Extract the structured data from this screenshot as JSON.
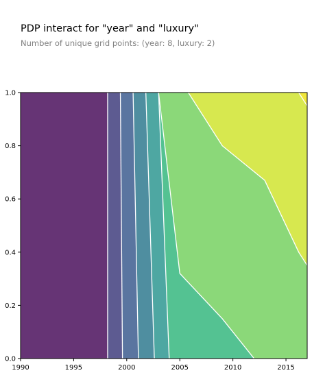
{
  "chart_data": {
    "type": "heatmap",
    "title": "PDP interact for \"year\" and \"luxury\"",
    "subtitle": "Number of unique grid points: (year: 8, luxury: 2)",
    "xlabel": "",
    "ylabel": "",
    "xlim": [
      1990,
      2017
    ],
    "ylim": [
      0.0,
      1.0
    ],
    "x_ticks": [
      1990,
      1995,
      2000,
      2005,
      2010,
      2015
    ],
    "x_tick_labels": [
      "1990",
      "1995",
      "2000",
      "2005",
      "2010",
      "2015"
    ],
    "y_ticks": [
      0.0,
      0.2,
      0.4,
      0.6,
      0.8,
      1.0
    ],
    "y_tick_labels": [
      "0.0",
      "0.2",
      "0.4",
      "0.6",
      "0.8",
      "1.0"
    ],
    "grid": false,
    "contour_line_color": "#ffffff",
    "contour_levels": [
      {
        "color": "#663475",
        "polygon": [
          [
            1990,
            0
          ],
          [
            1998.2,
            0
          ],
          [
            1998.2,
            1
          ],
          [
            1990,
            1
          ]
        ]
      },
      {
        "color": "#5d5b91",
        "polygon": [
          [
            1998.2,
            0
          ],
          [
            1999.6,
            0
          ],
          [
            1999.4,
            1
          ],
          [
            1998.2,
            1
          ]
        ]
      },
      {
        "color": "#5a75a0",
        "polygon": [
          [
            1999.6,
            0
          ],
          [
            2001.1,
            0
          ],
          [
            2000.6,
            1
          ],
          [
            1999.4,
            1
          ]
        ]
      },
      {
        "color": "#4f8ea0",
        "polygon": [
          [
            2001.1,
            0
          ],
          [
            2002.6,
            0
          ],
          [
            2001.8,
            1
          ],
          [
            2000.6,
            1
          ]
        ]
      },
      {
        "color": "#4ea7a2",
        "polygon": [
          [
            2002.6,
            0
          ],
          [
            2004.0,
            0
          ],
          [
            2003.0,
            1
          ],
          [
            2001.8,
            1
          ]
        ]
      },
      {
        "color": "#54c292",
        "polygon": [
          [
            2004.0,
            0
          ],
          [
            2012.0,
            0
          ],
          [
            2009.0,
            0.15
          ],
          [
            2005.0,
            0.32
          ],
          [
            2003.0,
            1
          ],
          [
            2003.0,
            1
          ]
        ]
      },
      {
        "color": "#8bd879",
        "polygon": [
          [
            2012.0,
            0
          ],
          [
            2017.0,
            0
          ],
          [
            2017.0,
            0.35
          ],
          [
            2016.2,
            0.4
          ],
          [
            2013.0,
            0.67
          ],
          [
            2009.0,
            0.8
          ],
          [
            2005.8,
            1
          ],
          [
            2003.0,
            1
          ],
          [
            2005.0,
            0.32
          ],
          [
            2009.0,
            0.15
          ]
        ]
      },
      {
        "color": "#d7e84f",
        "polygon": [
          [
            2005.8,
            1
          ],
          [
            2009.0,
            0.8
          ],
          [
            2013.0,
            0.67
          ],
          [
            2016.2,
            0.4
          ],
          [
            2017.0,
            0.35
          ],
          [
            2017.0,
            0.95
          ],
          [
            2016.2,
            1
          ]
        ]
      },
      {
        "color": "#f0e63a",
        "polygon": [
          [
            2016.2,
            1
          ],
          [
            2017.0,
            0.95
          ],
          [
            2017.0,
            1
          ]
        ]
      }
    ],
    "contour_lines": [
      [
        [
          1998.2,
          0
        ],
        [
          1998.2,
          1
        ]
      ],
      [
        [
          1999.6,
          0
        ],
        [
          1999.4,
          1
        ]
      ],
      [
        [
          2001.1,
          0
        ],
        [
          2000.6,
          1
        ]
      ],
      [
        [
          2002.6,
          0
        ],
        [
          2001.8,
          1
        ]
      ],
      [
        [
          2004.0,
          0
        ],
        [
          2003.0,
          1
        ]
      ],
      [
        [
          2012.0,
          0
        ],
        [
          2009.0,
          0.15
        ],
        [
          2005.0,
          0.32
        ],
        [
          2003.0,
          1
        ]
      ],
      [
        [
          2017.0,
          0.35
        ],
        [
          2016.2,
          0.4
        ],
        [
          2013.0,
          0.67
        ],
        [
          2009.0,
          0.8
        ],
        [
          2005.8,
          1
        ]
      ],
      [
        [
          2016.2,
          1
        ],
        [
          2017.0,
          0.95
        ]
      ]
    ]
  }
}
